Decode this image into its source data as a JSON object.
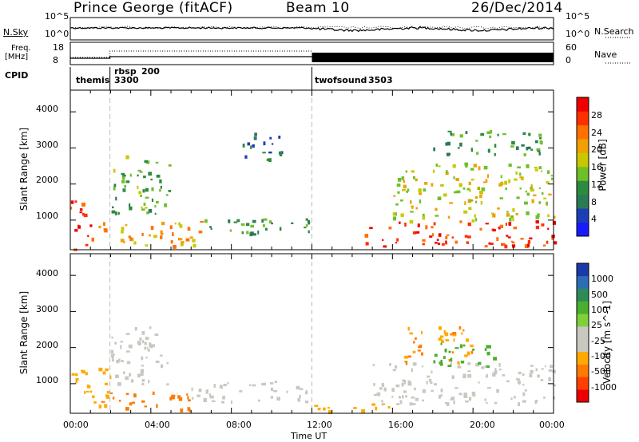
{
  "header": {
    "station": "Prince George (fitACF)",
    "beam": "Beam 10",
    "date": "26/Dec/2014"
  },
  "summary": {
    "nsky_label": "N.Sky",
    "nsearch_label": "N.Search",
    "freq_label_1": "Freq.",
    "freq_label_2": "[MHz]",
    "nave_label": "Nave",
    "cpid_label": "CPID",
    "left_ticks_noise": [
      "10^5",
      "10^0"
    ],
    "right_ticks_noise": [
      "10^5",
      "10^0"
    ],
    "left_ticks_freq": [
      "18",
      "8"
    ],
    "right_ticks_nave": [
      "60",
      "0"
    ],
    "cpid_entries": [
      {
        "name": "themis",
        "id": "3300",
        "start": "00:00"
      },
      {
        "name": "rbsp",
        "id": "200",
        "start": "01:57"
      },
      {
        "name": "twofsound",
        "id": "3503",
        "start": "12:00"
      }
    ]
  },
  "axes": {
    "ylabel": "Slant Range [km]",
    "xlabel": "Time UT",
    "x_ticks": [
      "00:00",
      "04:00",
      "08:00",
      "12:00",
      "16:00",
      "20:00",
      "00:00"
    ],
    "y_ticks": [
      "1000",
      "2000",
      "3000",
      "4000"
    ]
  },
  "colorbars": {
    "power": {
      "label": "Power [dB]",
      "ticks": [
        "4",
        "8",
        "12",
        "16",
        "20",
        "24",
        "28"
      ],
      "colors": [
        "#1a1aff",
        "#1c3fb6",
        "#2b7a55",
        "#2e8b3e",
        "#6fbf2a",
        "#c8c800",
        "#f0a000",
        "#ff7000",
        "#ff3000",
        "#ee0000"
      ]
    },
    "velocity": {
      "label": "Velocity [m s^-1]",
      "ticks": [
        "1000",
        "500",
        "100",
        "25",
        "-25",
        "-100",
        "-500",
        "-1000"
      ],
      "colors": [
        "#1a3aa8",
        "#2d6db5",
        "#2e8b57",
        "#4cae2e",
        "#7fd03a",
        "#c8c8c0",
        "#c8c8c0",
        "#ffaa00",
        "#ff7a00",
        "#ff4000",
        "#ee0000"
      ]
    }
  },
  "chart_data": [
    {
      "type": "heatmap",
      "title": "Power",
      "ylabel": "Slant Range [km]",
      "xlabel": "Time UT",
      "x_range_hours": [
        0,
        24
      ],
      "ylim_km": [
        180,
        4600
      ],
      "colorbar_range_db": [
        0,
        30
      ],
      "scatter_regions": [
        {
          "t0": 0.0,
          "t1": 1.0,
          "r0": 200,
          "r1": 1600,
          "level": 27
        },
        {
          "t0": 1.0,
          "t1": 6.5,
          "r0": 300,
          "r1": 1000,
          "level": 20
        },
        {
          "t0": 2.0,
          "t1": 5.0,
          "r0": 1200,
          "r1": 2800,
          "level": 12
        },
        {
          "t0": 6.5,
          "t1": 12.0,
          "r0": 600,
          "r1": 1100,
          "level": 10
        },
        {
          "t0": 8.5,
          "t1": 10.5,
          "r0": 2700,
          "r1": 3500,
          "level": 8
        },
        {
          "t0": 14.5,
          "t1": 24.0,
          "r0": 300,
          "r1": 1000,
          "level": 26
        },
        {
          "t0": 16.0,
          "t1": 24.0,
          "r0": 1000,
          "r1": 2600,
          "level": 16
        },
        {
          "t0": 18.0,
          "t1": 23.5,
          "r0": 2800,
          "r1": 3500,
          "level": 10
        }
      ]
    },
    {
      "type": "heatmap",
      "title": "Velocity",
      "ylabel": "Slant Range [km]",
      "xlabel": "Time UT",
      "x_range_hours": [
        0,
        24
      ],
      "ylim_km": [
        180,
        4600
      ],
      "colorbar_range_ms": [
        -1000,
        1000
      ],
      "scatter_regions": [
        {
          "t0": 0.0,
          "t1": 2.0,
          "r0": 400,
          "r1": 1500,
          "level": -150
        },
        {
          "t0": 1.5,
          "t1": 6.0,
          "r0": 300,
          "r1": 800,
          "level": -300
        },
        {
          "t0": 2.0,
          "t1": 5.0,
          "r0": 1000,
          "r1": 2600,
          "level": 0
        },
        {
          "t0": 6.0,
          "t1": 12.0,
          "r0": 500,
          "r1": 1100,
          "level": 0
        },
        {
          "t0": 12.0,
          "t1": 16.0,
          "r0": 250,
          "r1": 500,
          "level": -80
        },
        {
          "t0": 15.0,
          "t1": 24.0,
          "r0": 400,
          "r1": 1600,
          "level": 0
        },
        {
          "t0": 16.5,
          "t1": 20.0,
          "r0": 1600,
          "r1": 2600,
          "level": -200
        },
        {
          "t0": 18.0,
          "t1": 21.0,
          "r0": 1500,
          "r1": 2200,
          "level": 80
        }
      ]
    }
  ]
}
